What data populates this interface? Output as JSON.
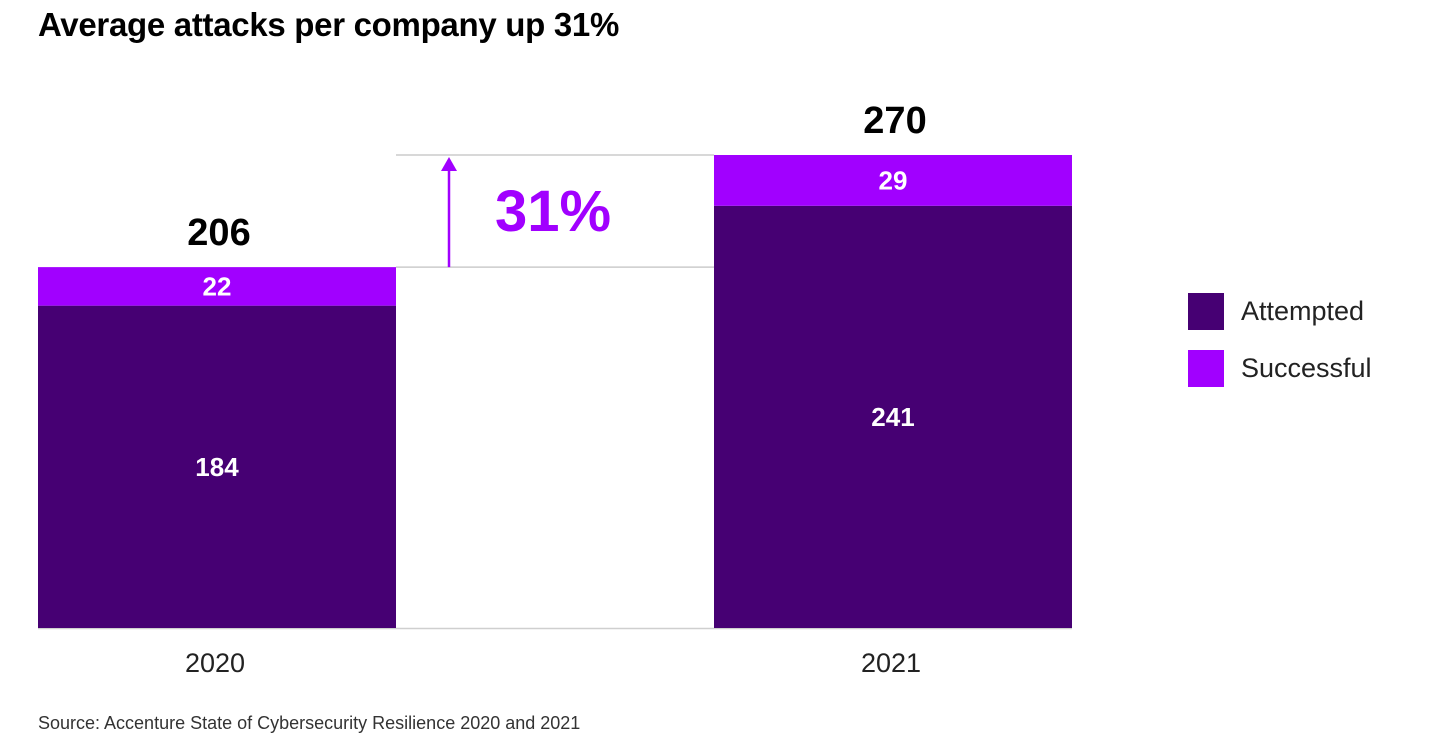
{
  "chart_data": {
    "type": "bar",
    "stacked": true,
    "title": "Average attacks per company up 31%",
    "categories": [
      "2020",
      "2021"
    ],
    "series": [
      {
        "name": "Attempted",
        "values": [
          184,
          241
        ],
        "color": "#460073"
      },
      {
        "name": "Successful",
        "values": [
          22,
          29
        ],
        "color": "#a100ff"
      }
    ],
    "totals": [
      206,
      270
    ],
    "annotation": {
      "label": "31%",
      "type": "increase-arrow",
      "from": 206,
      "to": 270,
      "color": "#a100ff"
    },
    "xlabel": "",
    "ylabel": "",
    "ylim": [
      0,
      270
    ],
    "grid": false,
    "legend_position": "right",
    "source": "Source: Accenture State of Cybersecurity Resilience 2020 and 2021"
  }
}
